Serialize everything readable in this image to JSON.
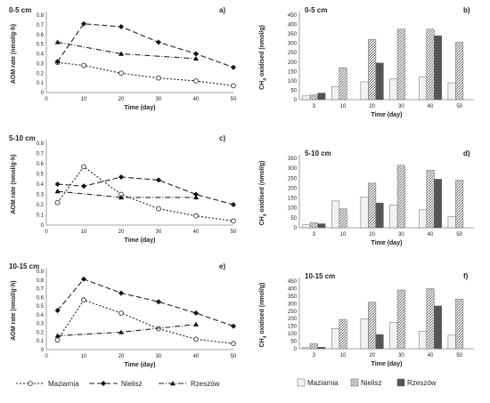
{
  "legend": {
    "line": [
      {
        "name": "Maziarnia",
        "marker": "circle",
        "dash": "2,2"
      },
      {
        "name": "Nielisz",
        "marker": "diamond",
        "dash": "6,3"
      },
      {
        "name": "Rzeszów",
        "marker": "triangle",
        "dash": "6,2,1,2"
      }
    ],
    "bar": [
      {
        "name": "Maziarnia",
        "fill": "#f2f2f2"
      },
      {
        "name": "Nielisz",
        "fill": "hatch"
      },
      {
        "name": "Rzeszów",
        "fill": "#555555"
      }
    ]
  },
  "chart_data": [
    {
      "type": "line",
      "panel": "a)",
      "depth": "0-5 cm",
      "xlabel": "Time (day)",
      "ylabel": "AOM rate (nmol/g·h)",
      "xlim": [
        0,
        50
      ],
      "ylim": [
        0,
        0.8
      ],
      "xticks": [
        "0",
        "10",
        "20",
        "30",
        "40",
        "50"
      ],
      "yticks": [
        "0",
        "0.1",
        "0.2",
        "0.3",
        "0.4",
        "0.5",
        "0.6",
        "0.7",
        "0.8"
      ],
      "series": [
        {
          "name": "Maziarnia",
          "x": [
            3,
            10,
            20,
            30,
            40,
            50
          ],
          "y": [
            0.31,
            0.28,
            0.2,
            0.15,
            0.12,
            0.07
          ]
        },
        {
          "name": "Nielisz",
          "x": [
            3,
            10,
            20,
            30,
            40,
            50
          ],
          "y": [
            0.32,
            0.71,
            0.68,
            0.52,
            0.4,
            0.26
          ]
        },
        {
          "name": "Rzeszów",
          "x": [
            3,
            20,
            40
          ],
          "y": [
            0.52,
            0.4,
            0.35
          ]
        }
      ]
    },
    {
      "type": "bar",
      "panel": "b)",
      "depth": "0-5 cm",
      "xlabel": "Time (day)",
      "ylabel": "CH4 oxidised (nmol/g)",
      "ylim": [
        0,
        450
      ],
      "yticks": [
        "0",
        "50",
        "100",
        "150",
        "200",
        "250",
        "300",
        "350",
        "400",
        "450"
      ],
      "categories": [
        "3",
        "10",
        "20",
        "30",
        "40",
        "50"
      ],
      "series": [
        {
          "name": "Maziarnia",
          "values": [
            20,
            70,
            95,
            110,
            120,
            90
          ]
        },
        {
          "name": "Nielisz",
          "values": [
            25,
            170,
            320,
            375,
            375,
            305
          ]
        },
        {
          "name": "Rzeszów",
          "values": [
            35,
            null,
            195,
            null,
            340,
            null
          ]
        }
      ]
    },
    {
      "type": "line",
      "panel": "c)",
      "depth": "5-10 cm",
      "xlabel": "Time (day)",
      "ylabel": "AOM rate (nmol/g·h)",
      "xlim": [
        0,
        50
      ],
      "ylim": [
        0,
        0.8
      ],
      "xticks": [
        "0",
        "10",
        "20",
        "30",
        "40",
        "50"
      ],
      "yticks": [
        "0",
        "0.1",
        "0.2",
        "0.3",
        "0.4",
        "0.5",
        "0.6",
        "0.7",
        "0.8"
      ],
      "series": [
        {
          "name": "Maziarnia",
          "x": [
            3,
            10,
            20,
            30,
            40,
            50
          ],
          "y": [
            0.22,
            0.57,
            0.3,
            0.16,
            0.09,
            0.04
          ]
        },
        {
          "name": "Nielisz",
          "x": [
            3,
            10,
            20,
            30,
            40,
            50
          ],
          "y": [
            0.4,
            0.38,
            0.47,
            0.44,
            0.3,
            0.2
          ]
        },
        {
          "name": "Rzeszów",
          "x": [
            3,
            20,
            40
          ],
          "y": [
            0.33,
            0.27,
            0.27
          ]
        }
      ]
    },
    {
      "type": "bar",
      "panel": "d)",
      "depth": "5-10 cm",
      "xlabel": "Time (day)",
      "ylabel": "CH4 oxidised (nmol/g)",
      "ylim": [
        0,
        350
      ],
      "yticks": [
        "0",
        "50",
        "100",
        "150",
        "200",
        "250",
        "300",
        "350"
      ],
      "categories": [
        "3",
        "10",
        "20",
        "30",
        "40",
        "50"
      ],
      "series": [
        {
          "name": "Maziarnia",
          "values": [
            15,
            135,
            155,
            115,
            90,
            55
          ]
        },
        {
          "name": "Nielisz",
          "values": [
            25,
            95,
            225,
            315,
            290,
            240
          ]
        },
        {
          "name": "Rzeszów",
          "values": [
            20,
            null,
            125,
            null,
            245,
            null
          ]
        }
      ]
    },
    {
      "type": "line",
      "panel": "e)",
      "depth": "10-15 cm",
      "xlabel": "Time (day)",
      "ylabel": "AOM rate (nmol/g·h)",
      "xlim": [
        0,
        50
      ],
      "ylim": [
        0,
        0.9
      ],
      "xticks": [
        "0",
        "10",
        "20",
        "30",
        "40",
        "50"
      ],
      "yticks": [
        "0",
        "0.1",
        "0.2",
        "0.3",
        "0.4",
        "0.5",
        "0.6",
        "0.7",
        "0.8",
        "0.9"
      ],
      "series": [
        {
          "name": "Maziarnia",
          "x": [
            3,
            10,
            20,
            30,
            40,
            50
          ],
          "y": [
            0.11,
            0.57,
            0.42,
            0.24,
            0.12,
            0.07
          ]
        },
        {
          "name": "Nielisz",
          "x": [
            3,
            10,
            20,
            30,
            40,
            50
          ],
          "y": [
            0.45,
            0.81,
            0.65,
            0.55,
            0.42,
            0.27
          ]
        },
        {
          "name": "Rzeszów",
          "x": [
            3,
            20,
            40
          ],
          "y": [
            0.16,
            0.2,
            0.29
          ]
        }
      ]
    },
    {
      "type": "bar",
      "panel": "f)",
      "depth": "10-15 cm",
      "xlabel": "Time (day)",
      "ylabel": "CH4 oxidised (nmol/g)",
      "ylim": [
        0,
        450
      ],
      "yticks": [
        "0",
        "50",
        "100",
        "150",
        "200",
        "250",
        "300",
        "350",
        "400",
        "450"
      ],
      "categories": [
        "3",
        "10",
        "20",
        "30",
        "40",
        "50"
      ],
      "series": [
        {
          "name": "Maziarnia",
          "values": [
            10,
            135,
            200,
            175,
            115,
            90
          ]
        },
        {
          "name": "Nielisz",
          "values": [
            35,
            195,
            310,
            390,
            400,
            330
          ]
        },
        {
          "name": "Rzeszów",
          "values": [
            10,
            null,
            95,
            null,
            285,
            null
          ]
        }
      ]
    }
  ]
}
